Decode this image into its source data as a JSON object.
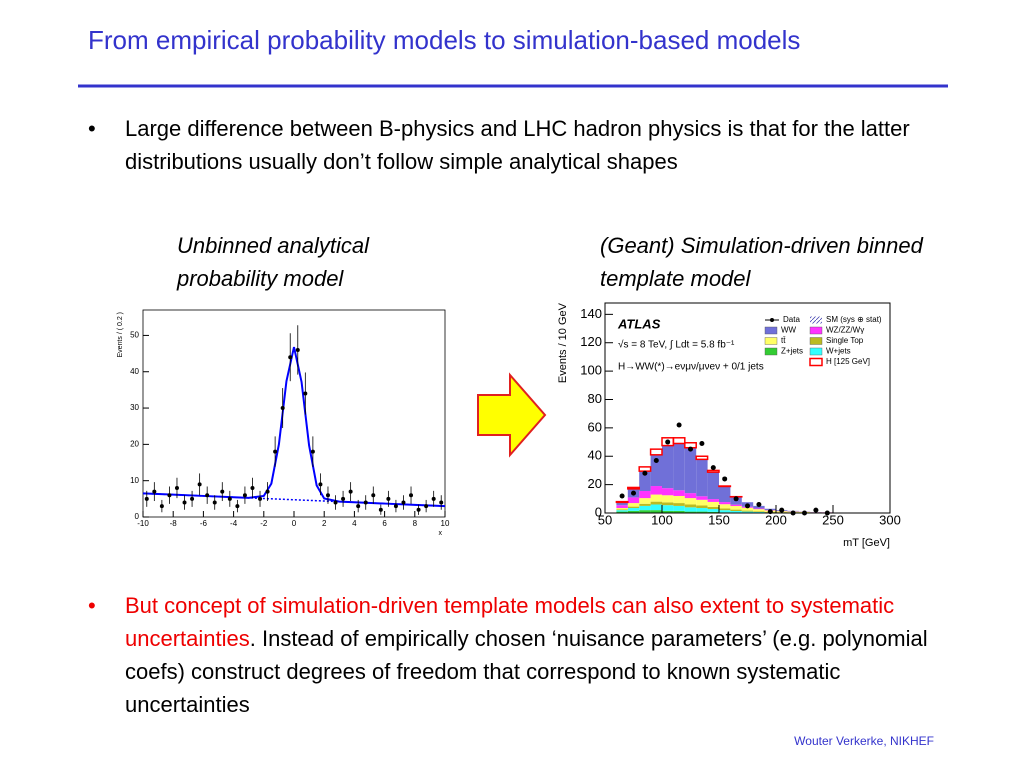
{
  "title": "From empirical probability models to simulation-based models",
  "bullets": [
    "Large difference between B-physics and LHC hadron physics is that for the latter distributions usually don’t follow simple analytical shapes",
    {
      "highlight": "But concept of simulation-driven template models can also extent to systematic uncertainties",
      "text": ". Instead of empirically chosen ‘nuisance parameters’ (e.g. polynomial coefs) construct degrees of freedom that correspond to known systematic uncertainties"
    }
  ],
  "captions": [
    "Unbinned analytical probability model",
    "(Geant) Simulation-driven binned template model"
  ],
  "footer": "Wouter Verkerke, NIKHEF",
  "chart_data": [
    {
      "type": "scatter",
      "xlabel": "x",
      "ylabel": "Events / ( 0.2 )",
      "color": "#000000",
      "fit_color": "#0000ff",
      "x": [
        -9.75,
        -9.25,
        -8.75,
        -8.25,
        -7.75,
        -7.25,
        -6.75,
        -6.25,
        -5.75,
        -5.25,
        -4.75,
        -4.25,
        -3.75,
        -3.25,
        -2.75,
        -2.25,
        -1.75,
        -1.25,
        -0.75,
        -0.25,
        0.25,
        0.75,
        1.25,
        1.75,
        2.25,
        2.75,
        3.25,
        3.75,
        4.25,
        4.75,
        5.25,
        5.75,
        6.25,
        6.75,
        7.25,
        7.75,
        8.25,
        8.75,
        9.25,
        9.75
      ],
      "values": [
        5,
        7,
        3,
        6,
        8,
        4,
        5,
        9,
        6,
        4,
        7,
        5,
        3,
        6,
        8,
        5,
        7,
        18,
        30,
        44,
        46,
        34,
        18,
        9,
        6,
        4,
        5,
        7,
        3,
        4,
        6,
        2,
        5,
        3,
        4,
        6,
        2,
        3,
        5,
        4
      ],
      "errors": [
        2.2,
        2.6,
        1.7,
        2.4,
        2.8,
        2,
        2.2,
        3,
        2.4,
        2,
        2.6,
        2.2,
        1.7,
        2.4,
        2.8,
        2.2,
        2.6,
        4.2,
        5.5,
        6.6,
        6.8,
        5.8,
        4.2,
        3,
        2.4,
        2,
        2.2,
        2.6,
        1.7,
        2,
        2.4,
        1.4,
        2.2,
        1.7,
        2,
        2.4,
        1.4,
        1.7,
        2.2,
        2
      ],
      "fit": {
        "x": [
          -10,
          -8,
          -6,
          -4,
          -3,
          -2,
          -1.5,
          -1,
          -0.5,
          0,
          0.5,
          1,
          1.5,
          2,
          3,
          4,
          6,
          8,
          10
        ],
        "values": [
          6.5,
          6.15,
          5.8,
          5.45,
          5.28,
          5.8,
          9.2,
          20.0,
          37.4,
          46.8,
          37.2,
          19.7,
          8.7,
          5.1,
          4.23,
          4.05,
          3.7,
          3.35,
          3.0
        ]
      },
      "background": {
        "x": [
          -10,
          10
        ],
        "values": [
          6.5,
          3.0
        ]
      },
      "xlim": [
        -10,
        10
      ],
      "ylim": [
        0,
        57
      ],
      "xticks": [
        -10,
        -8,
        -6,
        -4,
        -2,
        0,
        2,
        4,
        6,
        8,
        10
      ],
      "yticks": [
        0,
        10,
        20,
        30,
        40,
        50
      ]
    },
    {
      "type": "stacked_histogram",
      "xlabel": "mT [GeV]",
      "ylabel": "Events / 10 GeV",
      "annotations": [
        "ATLAS",
        "√s = 8 TeV, ∫ Ldt = 5.8 fb⁻¹",
        "H→WW(*)→eνμν/μνeν + 0/1 jets"
      ],
      "band_label": "SM (sys ⊕ stat)",
      "bins": [
        60,
        70,
        80,
        90,
        100,
        110,
        120,
        130,
        140,
        150,
        160,
        170,
        180,
        190,
        200,
        210,
        220,
        230,
        240,
        250
      ],
      "series": [
        {
          "name": "Z+jets",
          "color": "#33cc33",
          "values": [
            1,
            1.5,
            2,
            2,
            1.5,
            1.5,
            1,
            1,
            0.8,
            0.5,
            0.4,
            0.3,
            0.2,
            0.1,
            0.1,
            0.1,
            0.1,
            0,
            0
          ]
        },
        {
          "name": "W+jets",
          "color": "#33ffff",
          "values": [
            1,
            2,
            3,
            4,
            4,
            3.5,
            3,
            2.5,
            2,
            1.5,
            1,
            0.7,
            0.5,
            0.3,
            0.2,
            0.2,
            0.1,
            0.1,
            0.1
          ]
        },
        {
          "name": "Single Top",
          "color": "#bbbb22",
          "values": [
            0.5,
            1,
            1.5,
            2,
            2,
            2,
            2,
            1.8,
            1.5,
            1.2,
            1,
            0.7,
            0.5,
            0.4,
            0.3,
            0.2,
            0.2,
            0.1,
            0.1
          ]
        },
        {
          "name": "tt̄",
          "color": "#ffff66",
          "values": [
            1,
            2.5,
            4,
            5,
            5,
            5,
            4.5,
            4,
            3.5,
            3,
            2.5,
            2,
            1.5,
            1,
            0.7,
            0.5,
            0.4,
            0.3,
            0.2
          ]
        },
        {
          "name": "WZ/ZZ/Wγ",
          "color": "#ff33ff",
          "values": [
            2,
            4,
            5,
            6,
            5,
            4,
            3.5,
            2.5,
            2,
            1.5,
            1,
            0.7,
            0.5,
            0.3,
            0.2,
            0.2,
            0.1,
            0.1,
            0.1
          ]
        },
        {
          "name": "WW",
          "color": "#7070d8",
          "values": [
            2,
            6,
            14,
            22,
            30,
            33,
            32,
            26,
            19,
            11,
            5.5,
            3.2,
            1.8,
            0.9,
            0.5,
            0.3,
            0.1,
            0.1,
            0
          ]
        },
        {
          "name": "H [125 GeV]",
          "color": "#ff0000",
          "values": [
            0.5,
            1,
            3,
            4,
            5.5,
            4,
            3.5,
            2.2,
            1.2,
            0.3,
            0.1,
            0,
            0,
            0,
            0,
            0,
            0,
            0,
            0
          ]
        }
      ],
      "data": {
        "name": "Data",
        "color": "#000000",
        "x": [
          65,
          75,
          85,
          95,
          105,
          115,
          125,
          135,
          145,
          155,
          165,
          175,
          185,
          195,
          205,
          215,
          225,
          235,
          245
        ],
        "values": [
          12,
          14,
          28,
          37,
          50,
          62,
          45,
          49,
          32,
          24,
          10,
          5,
          6,
          1,
          2,
          0,
          0,
          2,
          0
        ]
      },
      "xlim": [
        50,
        300
      ],
      "ylim": [
        0,
        148
      ],
      "xticks": [
        50,
        100,
        150,
        200,
        250,
        300
      ],
      "yticks": [
        0,
        20,
        40,
        60,
        80,
        100,
        120,
        140
      ]
    }
  ]
}
